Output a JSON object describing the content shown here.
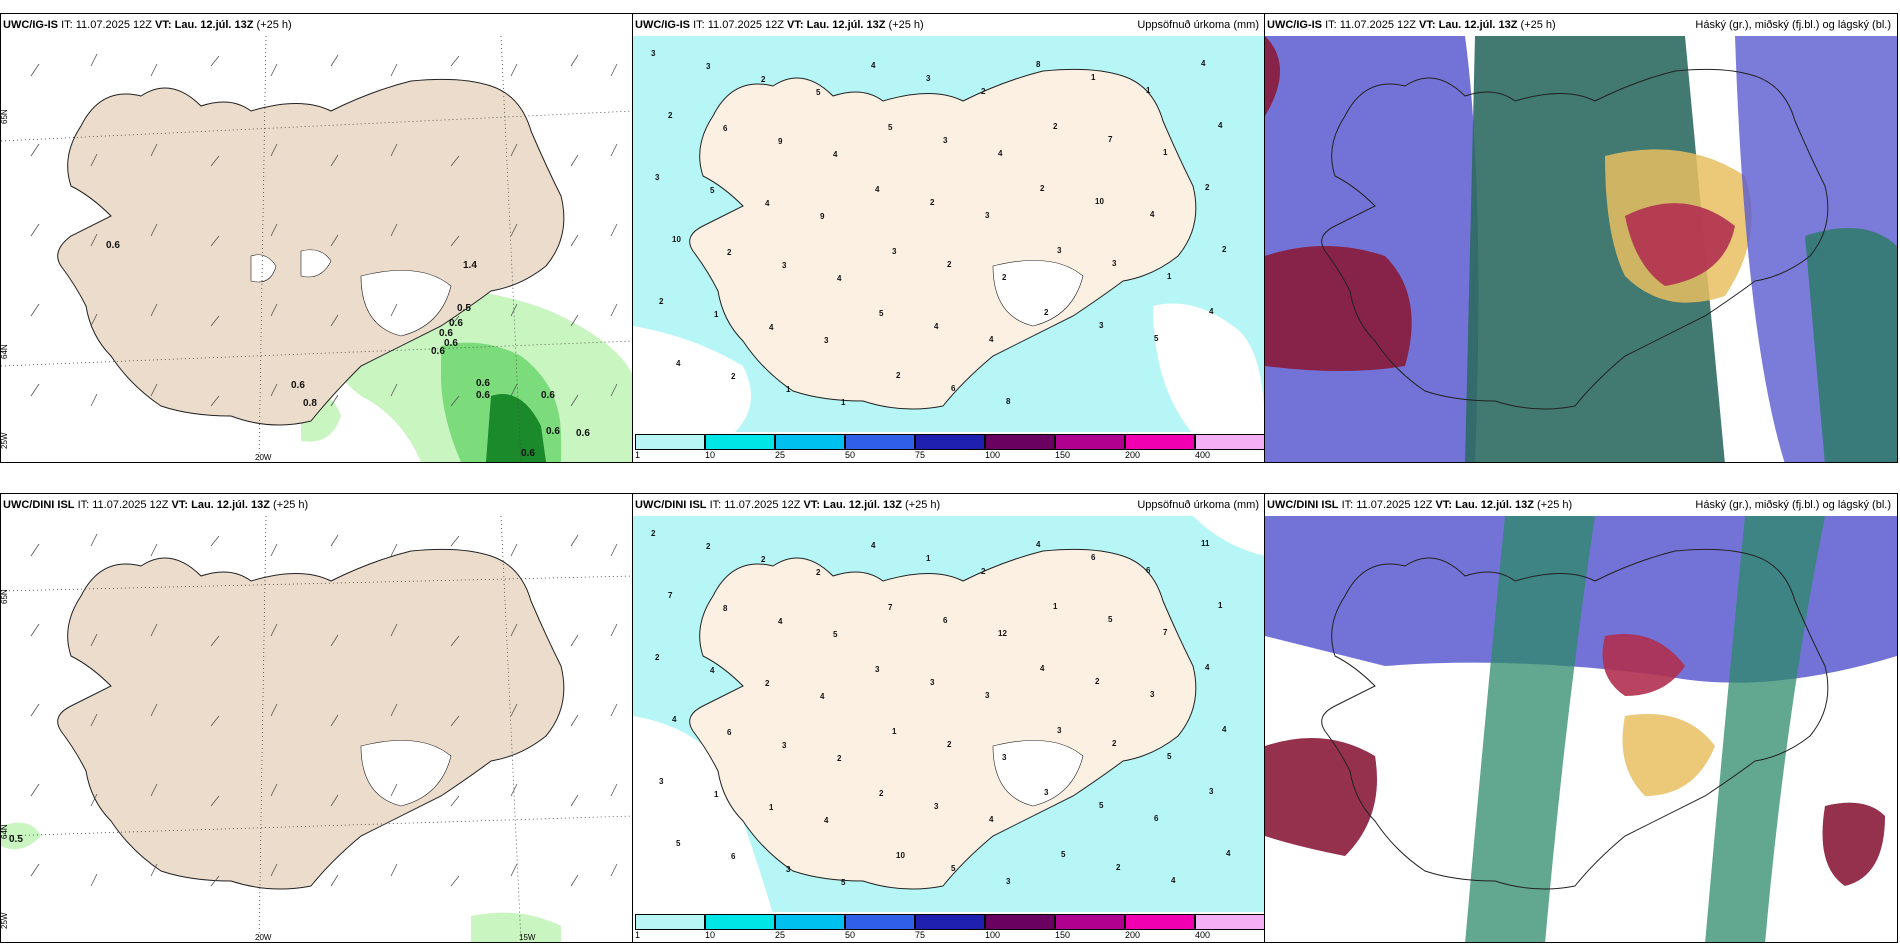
{
  "rows": [
    {
      "model": "UWC/IG-IS",
      "it": "IT: 11.07.2025 12Z",
      "vt_label": "VT:",
      "vt": "Lau. 12.júl. 13Z",
      "lead": "(+25 h)",
      "wind_labels": [
        "0.6",
        "0.5",
        "0.6",
        "0.6",
        "0.6",
        "0.6",
        "0.8",
        "0.6",
        "0.6",
        "0.6",
        "0.6",
        "0.6",
        "1.4",
        "0.6",
        "0.6"
      ],
      "precip_numbers": [
        "3",
        "3",
        "2",
        "5",
        "4",
        "3",
        "2",
        "8",
        "1",
        "1",
        "4",
        "2",
        "6",
        "9",
        "4",
        "5",
        "3",
        "4",
        "2",
        "7",
        "1",
        "4",
        "3",
        "5",
        "4",
        "9",
        "4",
        "2",
        "3",
        "2",
        "10",
        "4",
        "2",
        "10",
        "2",
        "3",
        "4",
        "3",
        "2",
        "2",
        "3",
        "3",
        "1",
        "2",
        "2",
        "1",
        "4",
        "3",
        "5",
        "4",
        "4",
        "2",
        "3",
        "5",
        "4",
        "4",
        "2",
        "1",
        "1",
        "2",
        "6",
        "8"
      ],
      "lat_labels": [
        "65N",
        "64N"
      ],
      "lon_labels": [
        "20W",
        "25W"
      ]
    },
    {
      "model": "UWC/DINI ISL",
      "it": "IT: 11.07.2025 12Z",
      "vt_label": "VT:",
      "vt": "Lau. 12.júl. 13Z",
      "lead": "(+25 h)",
      "wind_labels": [
        "0.5"
      ],
      "precip_numbers": [
        "2",
        "2",
        "2",
        "2",
        "4",
        "1",
        "2",
        "4",
        "6",
        "6",
        "11",
        "7",
        "8",
        "4",
        "5",
        "7",
        "6",
        "12",
        "1",
        "5",
        "7",
        "1",
        "2",
        "4",
        "2",
        "4",
        "3",
        "3",
        "3",
        "4",
        "2",
        "3",
        "4",
        "4",
        "6",
        "3",
        "2",
        "1",
        "2",
        "3",
        "3",
        "2",
        "5",
        "4",
        "3",
        "1",
        "1",
        "4",
        "2",
        "3",
        "4",
        "3",
        "5",
        "6",
        "3",
        "5",
        "6",
        "3",
        "5",
        "10",
        "5",
        "3",
        "5",
        "2",
        "4",
        "4"
      ],
      "lat_labels": [
        "65N",
        "64N"
      ],
      "lon_labels": [
        "20W",
        "15W",
        "25W"
      ]
    }
  ],
  "precip_title": "Uppsöfnuð úrkoma (mm)",
  "cloud_title": "Háský (gr.), miðský (fj.bl.) og lágský (bl.)",
  "colorbar": {
    "ticks": [
      "1",
      "10",
      "25",
      "50",
      "75",
      "100",
      "150",
      "200",
      "400"
    ],
    "colors": [
      "#b8f6f6",
      "#00e6e6",
      "#00c0f0",
      "#3060e8",
      "#2020b0",
      "#6a0060",
      "#b00090",
      "#f000b0",
      "#f5b0f5"
    ]
  },
  "colors": {
    "land": "#ecdccb",
    "precip_land": "#fcf0e3",
    "sea_light": "#b6f6f6",
    "green_light": "#c9f5c0",
    "green_mid": "#7cdc7c",
    "green_dark": "#1a8a2a"
  }
}
